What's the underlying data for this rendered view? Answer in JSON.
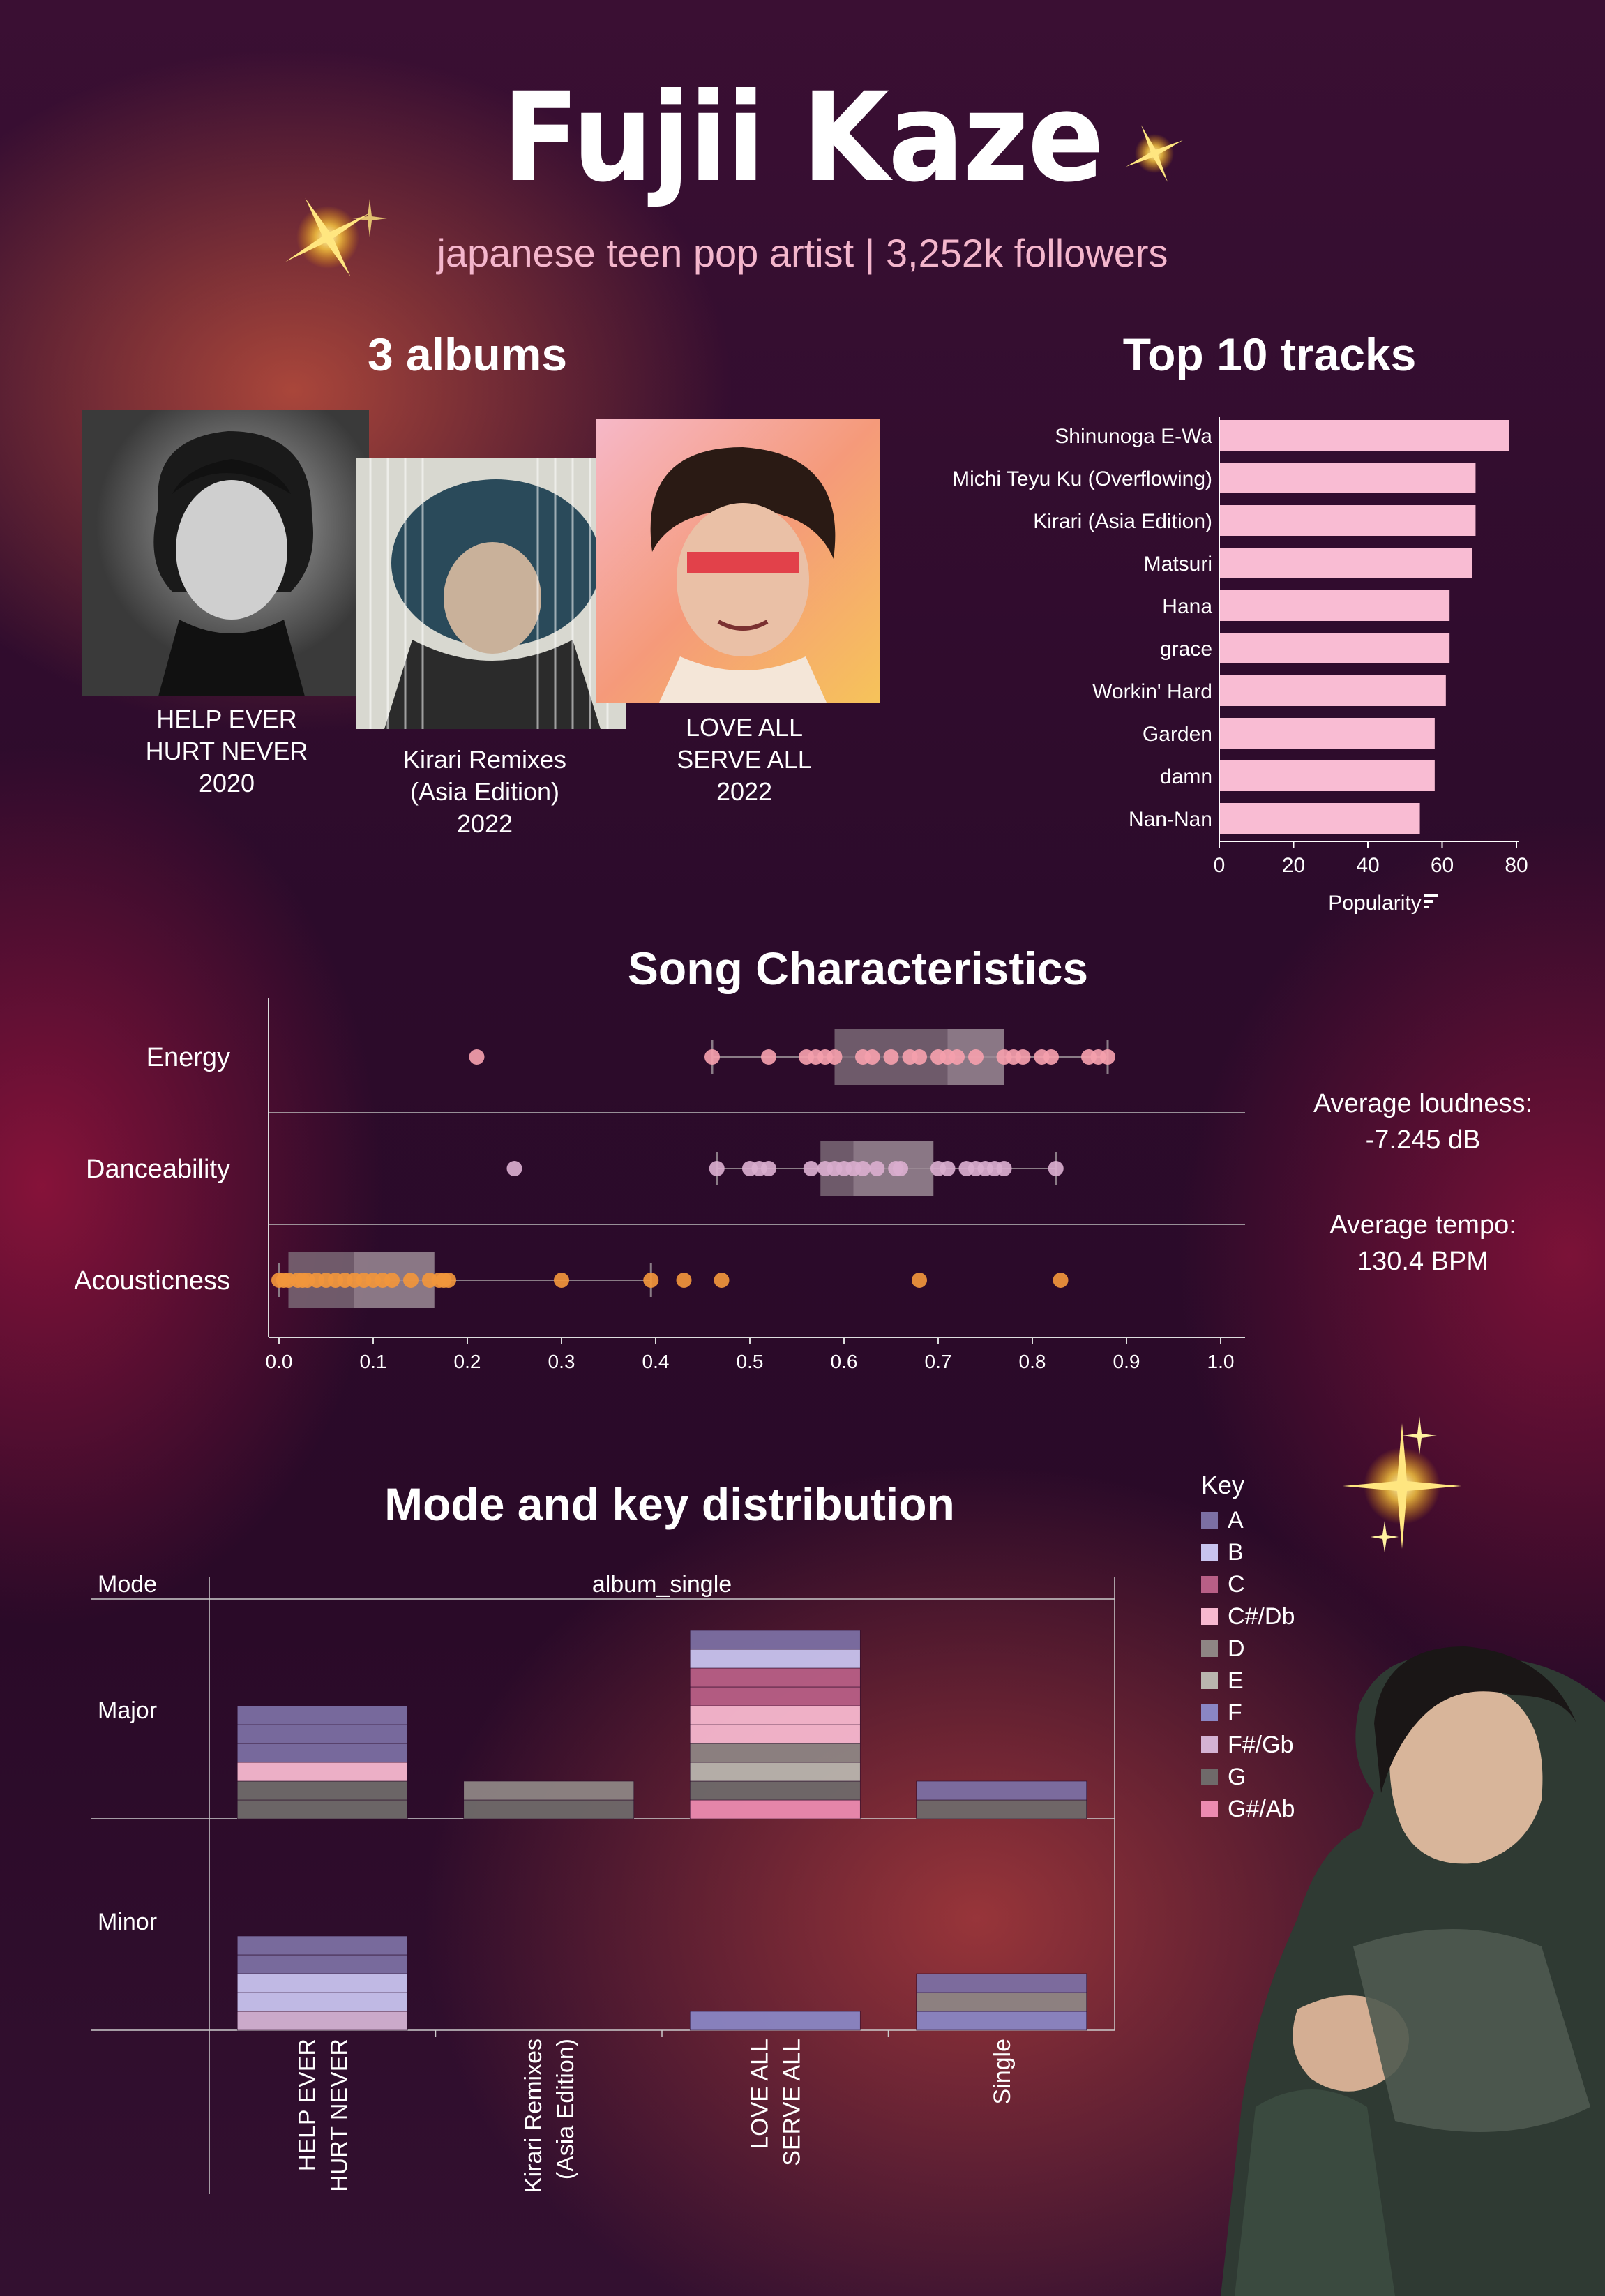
{
  "header": {
    "title": "Fujii Kaze",
    "subtitle": "japanese teen pop artist | 3,252k followers"
  },
  "albums_section": {
    "title": "3 albums",
    "albums": [
      {
        "line1": "HELP EVER",
        "line2": "HURT NEVER",
        "line3": "2020"
      },
      {
        "line1": "Kirari Remixes",
        "line2": "(Asia Edition)",
        "line3": "2022"
      },
      {
        "line1": "LOVE ALL",
        "line2": "SERVE ALL",
        "line3": "2022"
      }
    ]
  },
  "chart_data": [
    {
      "type": "bar",
      "title": "Top 10 tracks",
      "xlabel": "Popularity",
      "xlim": [
        0,
        80
      ],
      "ticks": [
        "0",
        "20",
        "40",
        "60",
        "80"
      ],
      "categories": [
        "Shinunoga E-Wa",
        "Michi Teyu Ku (Overflowing)",
        "Kirari (Asia Edition)",
        "Matsuri",
        "Hana",
        "grace",
        "Workin' Hard",
        "Garden",
        "damn",
        "Nan-Nan"
      ],
      "values": [
        78,
        69,
        69,
        68,
        62,
        62,
        61,
        58,
        58,
        54
      ],
      "color": "#f9bcd3"
    },
    {
      "type": "scatter",
      "title": "Song Characteristics",
      "xlim": [
        0,
        1
      ],
      "ticks": [
        "0.0",
        "0.1",
        "0.2",
        "0.3",
        "0.4",
        "0.5",
        "0.6",
        "0.7",
        "0.8",
        "0.9",
        "1.0"
      ],
      "series": [
        {
          "name": "Energy",
          "color": "#f4a0ad",
          "box": {
            "q1": 0.59,
            "median": 0.71,
            "q3": 0.77,
            "whisker_low": 0.46,
            "whisker_high": 0.88
          },
          "points": [
            0.21,
            0.46,
            0.52,
            0.56,
            0.57,
            0.58,
            0.59,
            0.62,
            0.63,
            0.65,
            0.67,
            0.68,
            0.7,
            0.71,
            0.72,
            0.74,
            0.77,
            0.78,
            0.79,
            0.81,
            0.82,
            0.86,
            0.87,
            0.88
          ]
        },
        {
          "name": "Danceability",
          "color": "#d9aece",
          "box": {
            "q1": 0.575,
            "median": 0.61,
            "q3": 0.695,
            "whisker_low": 0.465,
            "whisker_high": 0.825
          },
          "points": [
            0.25,
            0.465,
            0.5,
            0.51,
            0.52,
            0.565,
            0.58,
            0.59,
            0.6,
            0.61,
            0.62,
            0.635,
            0.655,
            0.66,
            0.7,
            0.71,
            0.73,
            0.74,
            0.75,
            0.76,
            0.77,
            0.825
          ]
        },
        {
          "name": "Acousticness",
          "color": "#f1963c",
          "box": {
            "q1": 0.01,
            "median": 0.08,
            "q3": 0.165,
            "whisker_low": 0.0,
            "whisker_high": 0.395
          },
          "points": [
            0.0,
            0.005,
            0.01,
            0.02,
            0.025,
            0.03,
            0.04,
            0.05,
            0.06,
            0.07,
            0.08,
            0.09,
            0.1,
            0.11,
            0.12,
            0.14,
            0.16,
            0.17,
            0.175,
            0.18,
            0.3,
            0.395,
            0.43,
            0.47,
            0.68,
            0.83
          ]
        }
      ]
    },
    {
      "type": "bar",
      "title": "Mode and key distribution",
      "row_header": "Mode",
      "column_header": "album_single",
      "rows": [
        "Major",
        "Minor"
      ],
      "categories": [
        [
          "HELP EVER",
          "HURT NEVER"
        ],
        [
          "Kirari Remixes",
          "(Asia Edition)"
        ],
        [
          "LOVE ALL",
          "SERVE ALL"
        ],
        [
          "Single"
        ]
      ],
      "legend_title": "Key",
      "keys": [
        {
          "name": "A",
          "color": "#7c6fa3"
        },
        {
          "name": "B",
          "color": "#c8c3ee"
        },
        {
          "name": "C",
          "color": "#b85f86"
        },
        {
          "name": "C#/Db",
          "color": "#f7b8cf"
        },
        {
          "name": "D",
          "color": "#8e8584"
        },
        {
          "name": "E",
          "color": "#b9b5ae"
        },
        {
          "name": "F",
          "color": "#8a86c4"
        },
        {
          "name": "F#/Gb",
          "color": "#d4b2d3"
        },
        {
          "name": "G",
          "color": "#6f6a6a"
        },
        {
          "name": "G#/Ab",
          "color": "#ec8bb0"
        }
      ],
      "stacks": {
        "Major": [
          [
            "G",
            "G",
            "C#/Db",
            "A",
            "A",
            "A"
          ],
          [
            "G",
            "D"
          ],
          [
            "G#/Ab",
            "G",
            "E",
            "D",
            "C#/Db",
            "C#/Db",
            "C",
            "C",
            "B",
            "A"
          ],
          [
            "G",
            "A"
          ]
        ],
        "Minor": [
          [
            "F#/Gb",
            "B",
            "B",
            "A",
            "A"
          ],
          [],
          [
            "F"
          ],
          [
            "F",
            "D",
            "A"
          ]
        ]
      }
    }
  ],
  "stats": {
    "loudness_label": "Average loudness:",
    "loudness_value": "-7.245 dB",
    "tempo_label": "Average tempo:",
    "tempo_value": "130.4 BPM"
  },
  "icons": {
    "popularity": "sort-icon",
    "sparkle": "sparkle-icon"
  }
}
